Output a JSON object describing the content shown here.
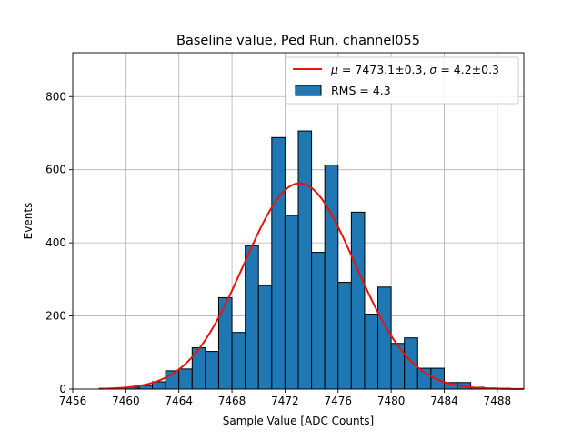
{
  "chart_data": {
    "type": "bar",
    "title": "Baseline value, Ped Run, channel055",
    "xlabel": "Sample Value [ADC Counts]",
    "ylabel": "Events",
    "xlim": [
      7456,
      7490
    ],
    "ylim": [
      0,
      920
    ],
    "xticks": [
      7456,
      7460,
      7464,
      7468,
      7472,
      7476,
      7480,
      7484,
      7488
    ],
    "yticks": [
      0,
      200,
      400,
      600,
      800
    ],
    "grid": true,
    "legend_position": "top-right",
    "bin_width": 1,
    "bins": [
      {
        "x": 7458,
        "value": 2
      },
      {
        "x": 7459,
        "value": 0
      },
      {
        "x": 7460,
        "value": 5
      },
      {
        "x": 7461,
        "value": 10
      },
      {
        "x": 7462,
        "value": 20
      },
      {
        "x": 7463,
        "value": 50
      },
      {
        "x": 7464,
        "value": 55
      },
      {
        "x": 7465,
        "value": 113
      },
      {
        "x": 7466,
        "value": 103
      },
      {
        "x": 7467,
        "value": 250
      },
      {
        "x": 7468,
        "value": 155
      },
      {
        "x": 7469,
        "value": 392
      },
      {
        "x": 7470,
        "value": 283
      },
      {
        "x": 7471,
        "value": 688
      },
      {
        "x": 7472,
        "value": 475
      },
      {
        "x": 7473,
        "value": 706
      },
      {
        "x": 7474,
        "value": 374
      },
      {
        "x": 7475,
        "value": 613
      },
      {
        "x": 7476,
        "value": 292
      },
      {
        "x": 7477,
        "value": 484
      },
      {
        "x": 7478,
        "value": 205
      },
      {
        "x": 7479,
        "value": 279
      },
      {
        "x": 7480,
        "value": 125
      },
      {
        "x": 7481,
        "value": 140
      },
      {
        "x": 7482,
        "value": 57
      },
      {
        "x": 7483,
        "value": 57
      },
      {
        "x": 7484,
        "value": 18
      },
      {
        "x": 7485,
        "value": 18
      },
      {
        "x": 7486,
        "value": 5
      },
      {
        "x": 7487,
        "value": 3
      },
      {
        "x": 7488,
        "value": 2
      },
      {
        "x": 7489,
        "value": 1
      }
    ],
    "fit": {
      "mu": 7473.1,
      "sigma": 4.2,
      "amplitude": 563,
      "x_range": [
        7458,
        7490
      ]
    },
    "series": [
      {
        "name": "$\\mu = 7473.1\\pm0.3$, $\\sigma = 4.2\\pm0.3$",
        "type": "line",
        "color": "#e8130c"
      },
      {
        "name": "RMS = 4.3",
        "type": "bar",
        "color": "#1f77b4"
      }
    ],
    "legend": {
      "fit_prefix_mu": "μ",
      "fit_text_1": " = 7473.1±0.3, ",
      "fit_prefix_sigma": "σ",
      "fit_text_2": " = 4.2±0.3",
      "hist_label": "RMS = 4.3"
    }
  }
}
